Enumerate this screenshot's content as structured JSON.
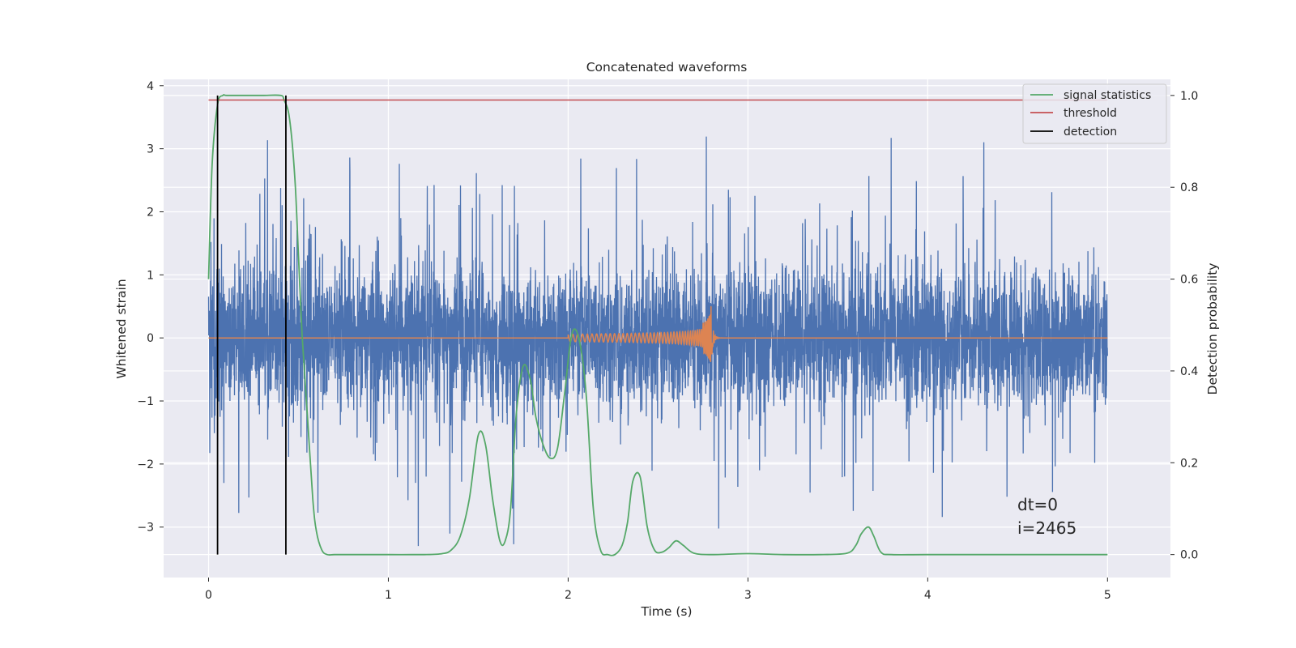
{
  "chart_data": {
    "type": "line",
    "title": "Concatenated waveforms",
    "xlabel": "Time (s)",
    "ylabel": "Whitened strain",
    "ylabel_right": "Detection probability",
    "xlim": [
      -0.25,
      5.35
    ],
    "ylim": [
      -3.8,
      4.1
    ],
    "ylim_right": [
      -0.05,
      1.035
    ],
    "x_ticks": [
      0,
      1,
      2,
      3,
      4,
      5
    ],
    "y_ticks": [
      -3,
      -2,
      -1,
      0,
      1,
      2,
      3,
      4
    ],
    "y_ticks_right": [
      0.0,
      0.2,
      0.4,
      0.6,
      0.8,
      1.0
    ],
    "y_tick_labels": [
      "−3",
      "−2",
      "−1",
      "0",
      "1",
      "2",
      "3",
      "4"
    ],
    "y_tick_labels_right": [
      "0.0",
      "0.2",
      "0.4",
      "0.6",
      "0.8",
      "1.0"
    ],
    "grid": true,
    "legend_position": "top-right",
    "colors": {
      "strain": "#4c72b0",
      "injection": "#dd8452",
      "signal_statistics": "#55a868",
      "threshold": "#c44e52",
      "detection": "#000000",
      "plot_bg": "#eaeaf2",
      "grid": "#ffffff"
    },
    "series": [
      {
        "name": "signal statistics",
        "axis": "right",
        "x": [
          0,
          0.02,
          0.05,
          0.08,
          0.1,
          0.2,
          0.3,
          0.4,
          0.42,
          0.45,
          0.48,
          0.5,
          0.52,
          0.55,
          0.58,
          0.6,
          0.63,
          0.66,
          0.7,
          0.8,
          1.0,
          1.2,
          1.3,
          1.35,
          1.4,
          1.45,
          1.5,
          1.54,
          1.58,
          1.62,
          1.65,
          1.68,
          1.71,
          1.75,
          1.79,
          1.82,
          1.86,
          1.9,
          1.94,
          1.98,
          2.02,
          2.06,
          2.1,
          2.14,
          2.18,
          2.22,
          2.26,
          2.3,
          2.33,
          2.36,
          2.4,
          2.44,
          2.48,
          2.52,
          2.56,
          2.6,
          2.64,
          2.7,
          2.8,
          3.0,
          3.2,
          3.4,
          3.55,
          3.6,
          3.63,
          3.67,
          3.7,
          3.74,
          3.8,
          4.0,
          4.5,
          5.0
        ],
        "values": [
          0.6,
          0.85,
          0.98,
          1.0,
          1.0,
          1.0,
          1.0,
          1.0,
          0.99,
          0.95,
          0.82,
          0.65,
          0.48,
          0.3,
          0.12,
          0.05,
          0.01,
          0.0,
          0.0,
          0.0,
          0.0,
          0.0,
          0.002,
          0.01,
          0.04,
          0.12,
          0.26,
          0.24,
          0.12,
          0.03,
          0.03,
          0.1,
          0.3,
          0.41,
          0.38,
          0.3,
          0.24,
          0.21,
          0.23,
          0.35,
          0.48,
          0.47,
          0.35,
          0.1,
          0.01,
          0.0,
          0.0,
          0.02,
          0.07,
          0.16,
          0.17,
          0.06,
          0.01,
          0.005,
          0.015,
          0.03,
          0.02,
          0.003,
          0.0,
          0.002,
          0.0,
          0.0,
          0.003,
          0.02,
          0.045,
          0.06,
          0.04,
          0.005,
          0.0,
          0.0,
          0.0,
          0.0
        ]
      },
      {
        "name": "threshold",
        "axis": "right",
        "x": [
          0,
          5
        ],
        "values": [
          0.99,
          0.99
        ]
      },
      {
        "name": "detection",
        "axis": "right",
        "type": "vertical",
        "x": [
          0.05,
          0.43
        ],
        "range": [
          0,
          1
        ]
      }
    ],
    "strain": {
      "x_range": [
        0,
        5
      ],
      "noise_sigma": 0.55,
      "peak_min": -3.3,
      "peak_max": 3.8
    },
    "injection": {
      "x_range": [
        2.0,
        2.8
      ],
      "merger_time": 2.8,
      "amp_start": 0.06,
      "amp_peak": 0.65
    },
    "annotations": [
      "dt=0",
      "i=2465"
    ]
  }
}
